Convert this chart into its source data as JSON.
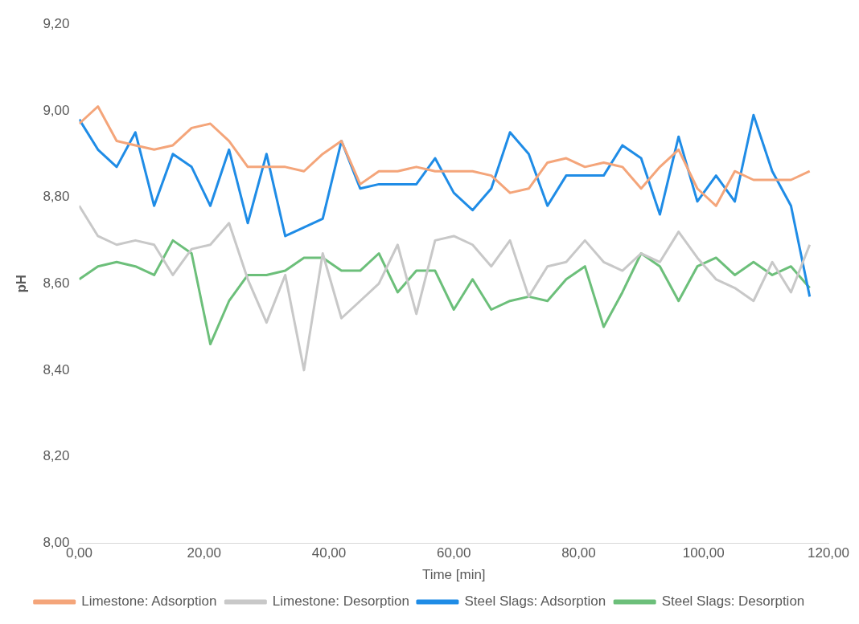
{
  "chart_data": {
    "type": "line",
    "xlabel": "Time [min]",
    "ylabel": "pH",
    "x": [
      0,
      3,
      6,
      9,
      12,
      15,
      18,
      21,
      24,
      27,
      30,
      33,
      36,
      39,
      42,
      45,
      48,
      51,
      54,
      57,
      60,
      63,
      66,
      69,
      72,
      75,
      78,
      81,
      84,
      87,
      90,
      93,
      96,
      99,
      102,
      105,
      108,
      111,
      114,
      117
    ],
    "xlim": [
      0,
      120
    ],
    "xticks": [
      {
        "value": 0,
        "label": "0,00"
      },
      {
        "value": 20,
        "label": "20,00"
      },
      {
        "value": 40,
        "label": "40,00"
      },
      {
        "value": 60,
        "label": "60,00"
      },
      {
        "value": 80,
        "label": "80,00"
      },
      {
        "value": 100,
        "label": "100,00"
      },
      {
        "value": 120,
        "label": "120,00"
      }
    ],
    "ylim": [
      8.0,
      9.2
    ],
    "yticks": [
      {
        "value": 8.0,
        "label": "8,00"
      },
      {
        "value": 8.2,
        "label": "8,20"
      },
      {
        "value": 8.4,
        "label": "8,40"
      },
      {
        "value": 8.6,
        "label": "8,60"
      },
      {
        "value": 8.8,
        "label": "8,80"
      },
      {
        "value": 9.0,
        "label": "9,00"
      },
      {
        "value": 9.2,
        "label": "9,20"
      }
    ],
    "grid": false,
    "legend": "bottom",
    "marker": "none",
    "line_style": "solid",
    "series": [
      {
        "name": "Limestone: Adsorption",
        "color": "#f4a57a",
        "values": [
          8.97,
          9.01,
          8.93,
          8.92,
          8.91,
          8.92,
          8.96,
          8.97,
          8.93,
          8.87,
          8.87,
          8.87,
          8.86,
          8.9,
          8.93,
          8.83,
          8.86,
          8.86,
          8.87,
          8.86,
          8.86,
          8.86,
          8.85,
          8.81,
          8.82,
          8.88,
          8.89,
          8.87,
          8.88,
          8.87,
          8.82,
          8.87,
          8.91,
          8.82,
          8.78,
          8.86,
          8.84,
          8.84,
          8.84,
          8.86
        ]
      },
      {
        "name": "Limestone: Desorption",
        "color": "#c8c8c8",
        "values": [
          8.78,
          8.71,
          8.69,
          8.7,
          8.69,
          8.62,
          8.68,
          8.69,
          8.74,
          8.61,
          8.51,
          8.62,
          8.4,
          8.67,
          8.52,
          8.56,
          8.6,
          8.69,
          8.53,
          8.7,
          8.71,
          8.69,
          8.64,
          8.7,
          8.57,
          8.64,
          8.65,
          8.7,
          8.65,
          8.63,
          8.67,
          8.65,
          8.72,
          8.66,
          8.61,
          8.59,
          8.56,
          8.65,
          8.58,
          8.69
        ]
      },
      {
        "name": "Steel Slags: Adsorption",
        "color": "#1f8ce6",
        "values": [
          8.98,
          8.91,
          8.87,
          8.95,
          8.78,
          8.9,
          8.87,
          8.78,
          8.91,
          8.74,
          8.9,
          8.71,
          8.73,
          8.75,
          8.93,
          8.82,
          8.83,
          8.83,
          8.83,
          8.89,
          8.81,
          8.77,
          8.82,
          8.95,
          8.9,
          8.78,
          8.85,
          8.85,
          8.85,
          8.92,
          8.89,
          8.76,
          8.94,
          8.79,
          8.85,
          8.79,
          8.99,
          8.86,
          8.78,
          8.57
        ]
      },
      {
        "name": "Steel Slags: Desorption",
        "color": "#6cbf7a",
        "values": [
          8.61,
          8.64,
          8.65,
          8.64,
          8.62,
          8.7,
          8.67,
          8.46,
          8.56,
          8.62,
          8.62,
          8.63,
          8.66,
          8.66,
          8.63,
          8.63,
          8.67,
          8.58,
          8.63,
          8.63,
          8.54,
          8.61,
          8.54,
          8.56,
          8.57,
          8.56,
          8.61,
          8.64,
          8.5,
          8.58,
          8.67,
          8.64,
          8.56,
          8.64,
          8.66,
          8.62,
          8.65,
          8.62,
          8.64,
          8.59
        ]
      }
    ]
  }
}
